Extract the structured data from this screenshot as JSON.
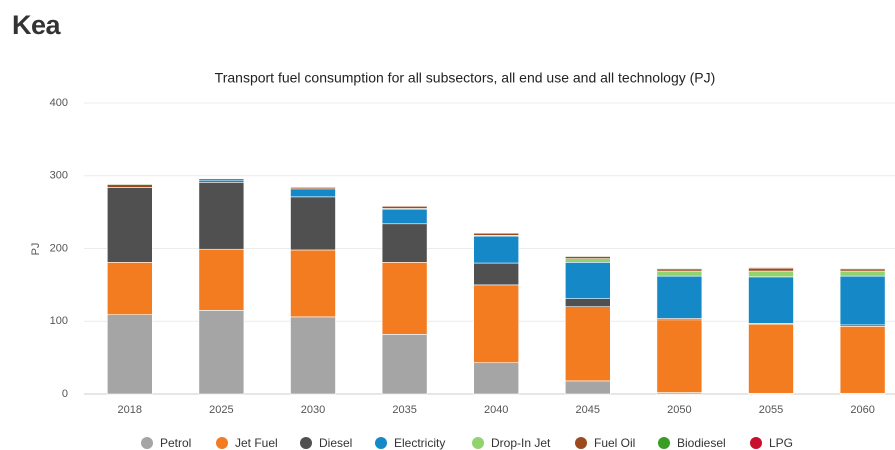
{
  "header": {
    "title": "Kea"
  },
  "chart_data": {
    "type": "stacked_bar",
    "title": "Transport fuel consumption for all subsectors, all end use and all technology (PJ)",
    "y_label": "PJ",
    "categories": [
      "2018",
      "2025",
      "2030",
      "2035",
      "2040",
      "2045",
      "2050",
      "2055",
      "2060"
    ],
    "series": [
      {
        "name": "Petrol",
        "color": "#a5a5a5",
        "values": [
          109,
          115,
          106,
          82,
          43,
          18,
          2,
          1,
          1
        ]
      },
      {
        "name": "Jet Fuel",
        "color": "#f47c20",
        "values": [
          72,
          84,
          92,
          99,
          107,
          102,
          100,
          95,
          92
        ]
      },
      {
        "name": "Diesel",
        "color": "#505050",
        "values": [
          103,
          92,
          73,
          53,
          30,
          11,
          2,
          1,
          2
        ]
      },
      {
        "name": "Electricity",
        "color": "#1589c7",
        "values": [
          0,
          3,
          11,
          20,
          37,
          50,
          58,
          64,
          67
        ]
      },
      {
        "name": "Drop-In Jet",
        "color": "#92d36e",
        "values": [
          0,
          0,
          0,
          1,
          1,
          5,
          7,
          8,
          7
        ]
      },
      {
        "name": "Fuel Oil",
        "color": "#9c4a1e",
        "values": [
          4,
          2,
          2,
          3,
          3,
          3,
          3,
          4,
          3
        ]
      },
      {
        "name": "Biodiesel",
        "color": "#3a9d23",
        "values": [
          1,
          0,
          0,
          0,
          0,
          1,
          1,
          1,
          1
        ]
      },
      {
        "name": "LPG",
        "color": "#c8102e",
        "values": [
          0,
          0,
          0,
          0,
          0,
          0,
          0,
          0,
          0
        ]
      }
    ],
    "ylim": [
      0,
      400
    ],
    "yticks": [
      0,
      100,
      200,
      300,
      400
    ],
    "grid": true,
    "legend": "bottom"
  }
}
